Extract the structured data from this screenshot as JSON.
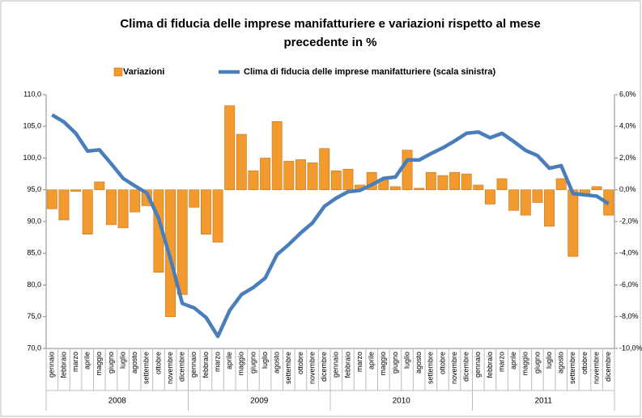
{
  "chart_data": {
    "type": "combo",
    "title": "Clima di fiducia delle imprese manifatturiere e variazioni rispetto al mese",
    "title_line2": "precedente in %",
    "categories": [
      "gennaio",
      "febbraio",
      "marzo",
      "aprile",
      "maggio",
      "giugno",
      "luglio",
      "agosto",
      "settembre",
      "ottobre",
      "novembre",
      "dicembre",
      "gennaio",
      "febbraio",
      "marzo",
      "aprile",
      "maggio",
      "giugno",
      "luglio",
      "agosto",
      "settembre",
      "ottobre",
      "novembre",
      "dicembre",
      "gennaio",
      "febbraio",
      "marzo",
      "aprile",
      "maggio",
      "giugno",
      "luglio",
      "agosto",
      "settembre",
      "ottobre",
      "novembre",
      "dicembre",
      "gennaio",
      "febbraio",
      "marzo",
      "aprile",
      "maggio",
      "giugno",
      "luglio",
      "agosto",
      "settembre",
      "ottobre",
      "novembre",
      "dicembre"
    ],
    "year_groups": [
      "2008",
      "2009",
      "2010",
      "2011"
    ],
    "series": [
      {
        "name": "Variazioni",
        "type": "bar",
        "axis": "y2",
        "color": "#f29a2e",
        "values": [
          -1.2,
          -1.9,
          -0.1,
          -2.8,
          0.5,
          -2.2,
          -2.4,
          -1.4,
          -1.0,
          -5.2,
          -8.0,
          -6.6,
          -1.1,
          -2.8,
          -3.3,
          5.3,
          3.5,
          1.2,
          2.0,
          4.3,
          1.8,
          1.9,
          1.7,
          2.6,
          1.2,
          1.3,
          0.3,
          1.1,
          0.6,
          0.2,
          2.5,
          0.1,
          1.1,
          0.9,
          1.1,
          1.0,
          0.3,
          -0.9,
          0.7,
          -1.3,
          -1.6,
          -0.8,
          -2.3,
          0.7,
          -4.2,
          -0.3,
          0.2,
          -1.6
        ]
      },
      {
        "name": "Clima di fiducia delle imprese manifatturiere (scala sinistra)",
        "type": "line",
        "axis": "y",
        "color": "#4a7ebb",
        "values": [
          106.8,
          105.7,
          103.9,
          101.1,
          101.3,
          99.1,
          96.8,
          95.6,
          94.5,
          90.5,
          84.1,
          77.1,
          76.4,
          74.9,
          71.9,
          76.0,
          78.5,
          79.6,
          81.1,
          84.8,
          86.4,
          88.2,
          89.8,
          92.4,
          93.7,
          94.7,
          94.9,
          95.8,
          96.8,
          97.0,
          99.7,
          99.7,
          100.7,
          101.6,
          102.7,
          103.9,
          104.1,
          103.2,
          103.9,
          102.6,
          101.2,
          100.4,
          98.4,
          98.8,
          94.4,
          94.2,
          94.0,
          92.8
        ]
      }
    ],
    "ylim": [
      70,
      110
    ],
    "yticks": [
      {
        "value": 70,
        "label": "70,0"
      },
      {
        "value": 75,
        "label": "75,0"
      },
      {
        "value": 80,
        "label": "80,0"
      },
      {
        "value": 85,
        "label": "85,0"
      },
      {
        "value": 90,
        "label": "90,0"
      },
      {
        "value": 95,
        "label": "95,0"
      },
      {
        "value": 100,
        "label": "100,0"
      },
      {
        "value": 105,
        "label": "105,0"
      },
      {
        "value": 110,
        "label": "110,0"
      }
    ],
    "y2lim": [
      -10,
      6
    ],
    "y2ticks": [
      {
        "value": -10,
        "label": "-10,0%"
      },
      {
        "value": -8,
        "label": "-8,0%"
      },
      {
        "value": -6,
        "label": "-6,0%"
      },
      {
        "value": -4,
        "label": "-4,0%"
      },
      {
        "value": -2,
        "label": "-2,0%"
      },
      {
        "value": 0,
        "label": "0,0%"
      },
      {
        "value": 2,
        "label": "2,0%"
      },
      {
        "value": 4,
        "label": "4,0%"
      },
      {
        "value": 6,
        "label": "6,0%"
      }
    ]
  }
}
